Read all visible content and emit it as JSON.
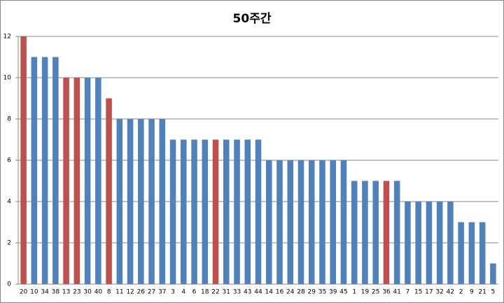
{
  "chart_data": {
    "type": "bar",
    "title": "50주간",
    "categories": [
      "20",
      "10",
      "34",
      "38",
      "13",
      "23",
      "30",
      "40",
      "8",
      "11",
      "12",
      "26",
      "27",
      "37",
      "3",
      "4",
      "6",
      "18",
      "22",
      "31",
      "33",
      "43",
      "44",
      "14",
      "16",
      "24",
      "28",
      "29",
      "35",
      "39",
      "45",
      "1",
      "19",
      "25",
      "36",
      "41",
      "7",
      "15",
      "17",
      "32",
      "42",
      "2",
      "9",
      "21",
      "5"
    ],
    "values": [
      12,
      11,
      11,
      11,
      10,
      10,
      10,
      10,
      9,
      8,
      8,
      8,
      8,
      8,
      7,
      7,
      7,
      7,
      7,
      7,
      7,
      7,
      7,
      6,
      6,
      6,
      6,
      6,
      6,
      6,
      6,
      5,
      5,
      5,
      5,
      5,
      4,
      4,
      4,
      4,
      4,
      3,
      3,
      3,
      1
    ],
    "colors": [
      "#c0504d",
      "#4f81bd",
      "#4f81bd",
      "#4f81bd",
      "#c0504d",
      "#c0504d",
      "#4f81bd",
      "#4f81bd",
      "#c0504d",
      "#4f81bd",
      "#4f81bd",
      "#4f81bd",
      "#4f81bd",
      "#4f81bd",
      "#4f81bd",
      "#4f81bd",
      "#4f81bd",
      "#4f81bd",
      "#c0504d",
      "#4f81bd",
      "#4f81bd",
      "#4f81bd",
      "#4f81bd",
      "#4f81bd",
      "#4f81bd",
      "#4f81bd",
      "#4f81bd",
      "#4f81bd",
      "#4f81bd",
      "#4f81bd",
      "#4f81bd",
      "#4f81bd",
      "#4f81bd",
      "#4f81bd",
      "#c0504d",
      "#4f81bd",
      "#4f81bd",
      "#4f81bd",
      "#4f81bd",
      "#4f81bd",
      "#4f81bd",
      "#4f81bd",
      "#4f81bd",
      "#4f81bd",
      "#4f81bd"
    ],
    "ylim": [
      0,
      12
    ],
    "yticks": [
      0,
      2,
      4,
      6,
      8,
      10,
      12
    ],
    "grid": true
  }
}
